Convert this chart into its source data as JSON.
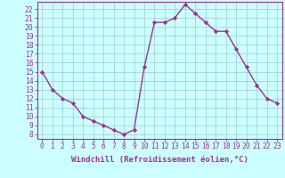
{
  "x": [
    0,
    1,
    2,
    3,
    4,
    5,
    6,
    7,
    8,
    9,
    10,
    11,
    12,
    13,
    14,
    15,
    16,
    17,
    18,
    19,
    20,
    21,
    22,
    23
  ],
  "y": [
    15,
    13,
    12,
    11.5,
    10,
    9.5,
    9,
    8.5,
    8,
    8.5,
    15.5,
    20.5,
    20.5,
    21,
    22.5,
    21.5,
    20.5,
    19.5,
    19.5,
    17.5,
    15.5,
    13.5,
    12,
    11.5
  ],
  "line_color": "#993399",
  "marker": "D",
  "marker_size": 2.2,
  "linewidth": 1.0,
  "bg_color": "#ccffff",
  "grid_color": "#99cccc",
  "xlabel": "Windchill (Refroidissement éolien,°C)",
  "xlabel_fontsize": 6.5,
  "ylabel_ticks": [
    8,
    9,
    10,
    11,
    12,
    13,
    14,
    15,
    16,
    17,
    18,
    19,
    20,
    21,
    22
  ],
  "xlim": [
    -0.5,
    23.5
  ],
  "ylim": [
    7.5,
    22.8
  ],
  "xticks": [
    0,
    1,
    2,
    3,
    4,
    5,
    6,
    7,
    8,
    9,
    10,
    11,
    12,
    13,
    14,
    15,
    16,
    17,
    18,
    19,
    20,
    21,
    22,
    23
  ],
  "tick_fontsize": 5.8,
  "spine_color": "#993399",
  "fig_width": 3.2,
  "fig_height": 2.0,
  "dpi": 100
}
